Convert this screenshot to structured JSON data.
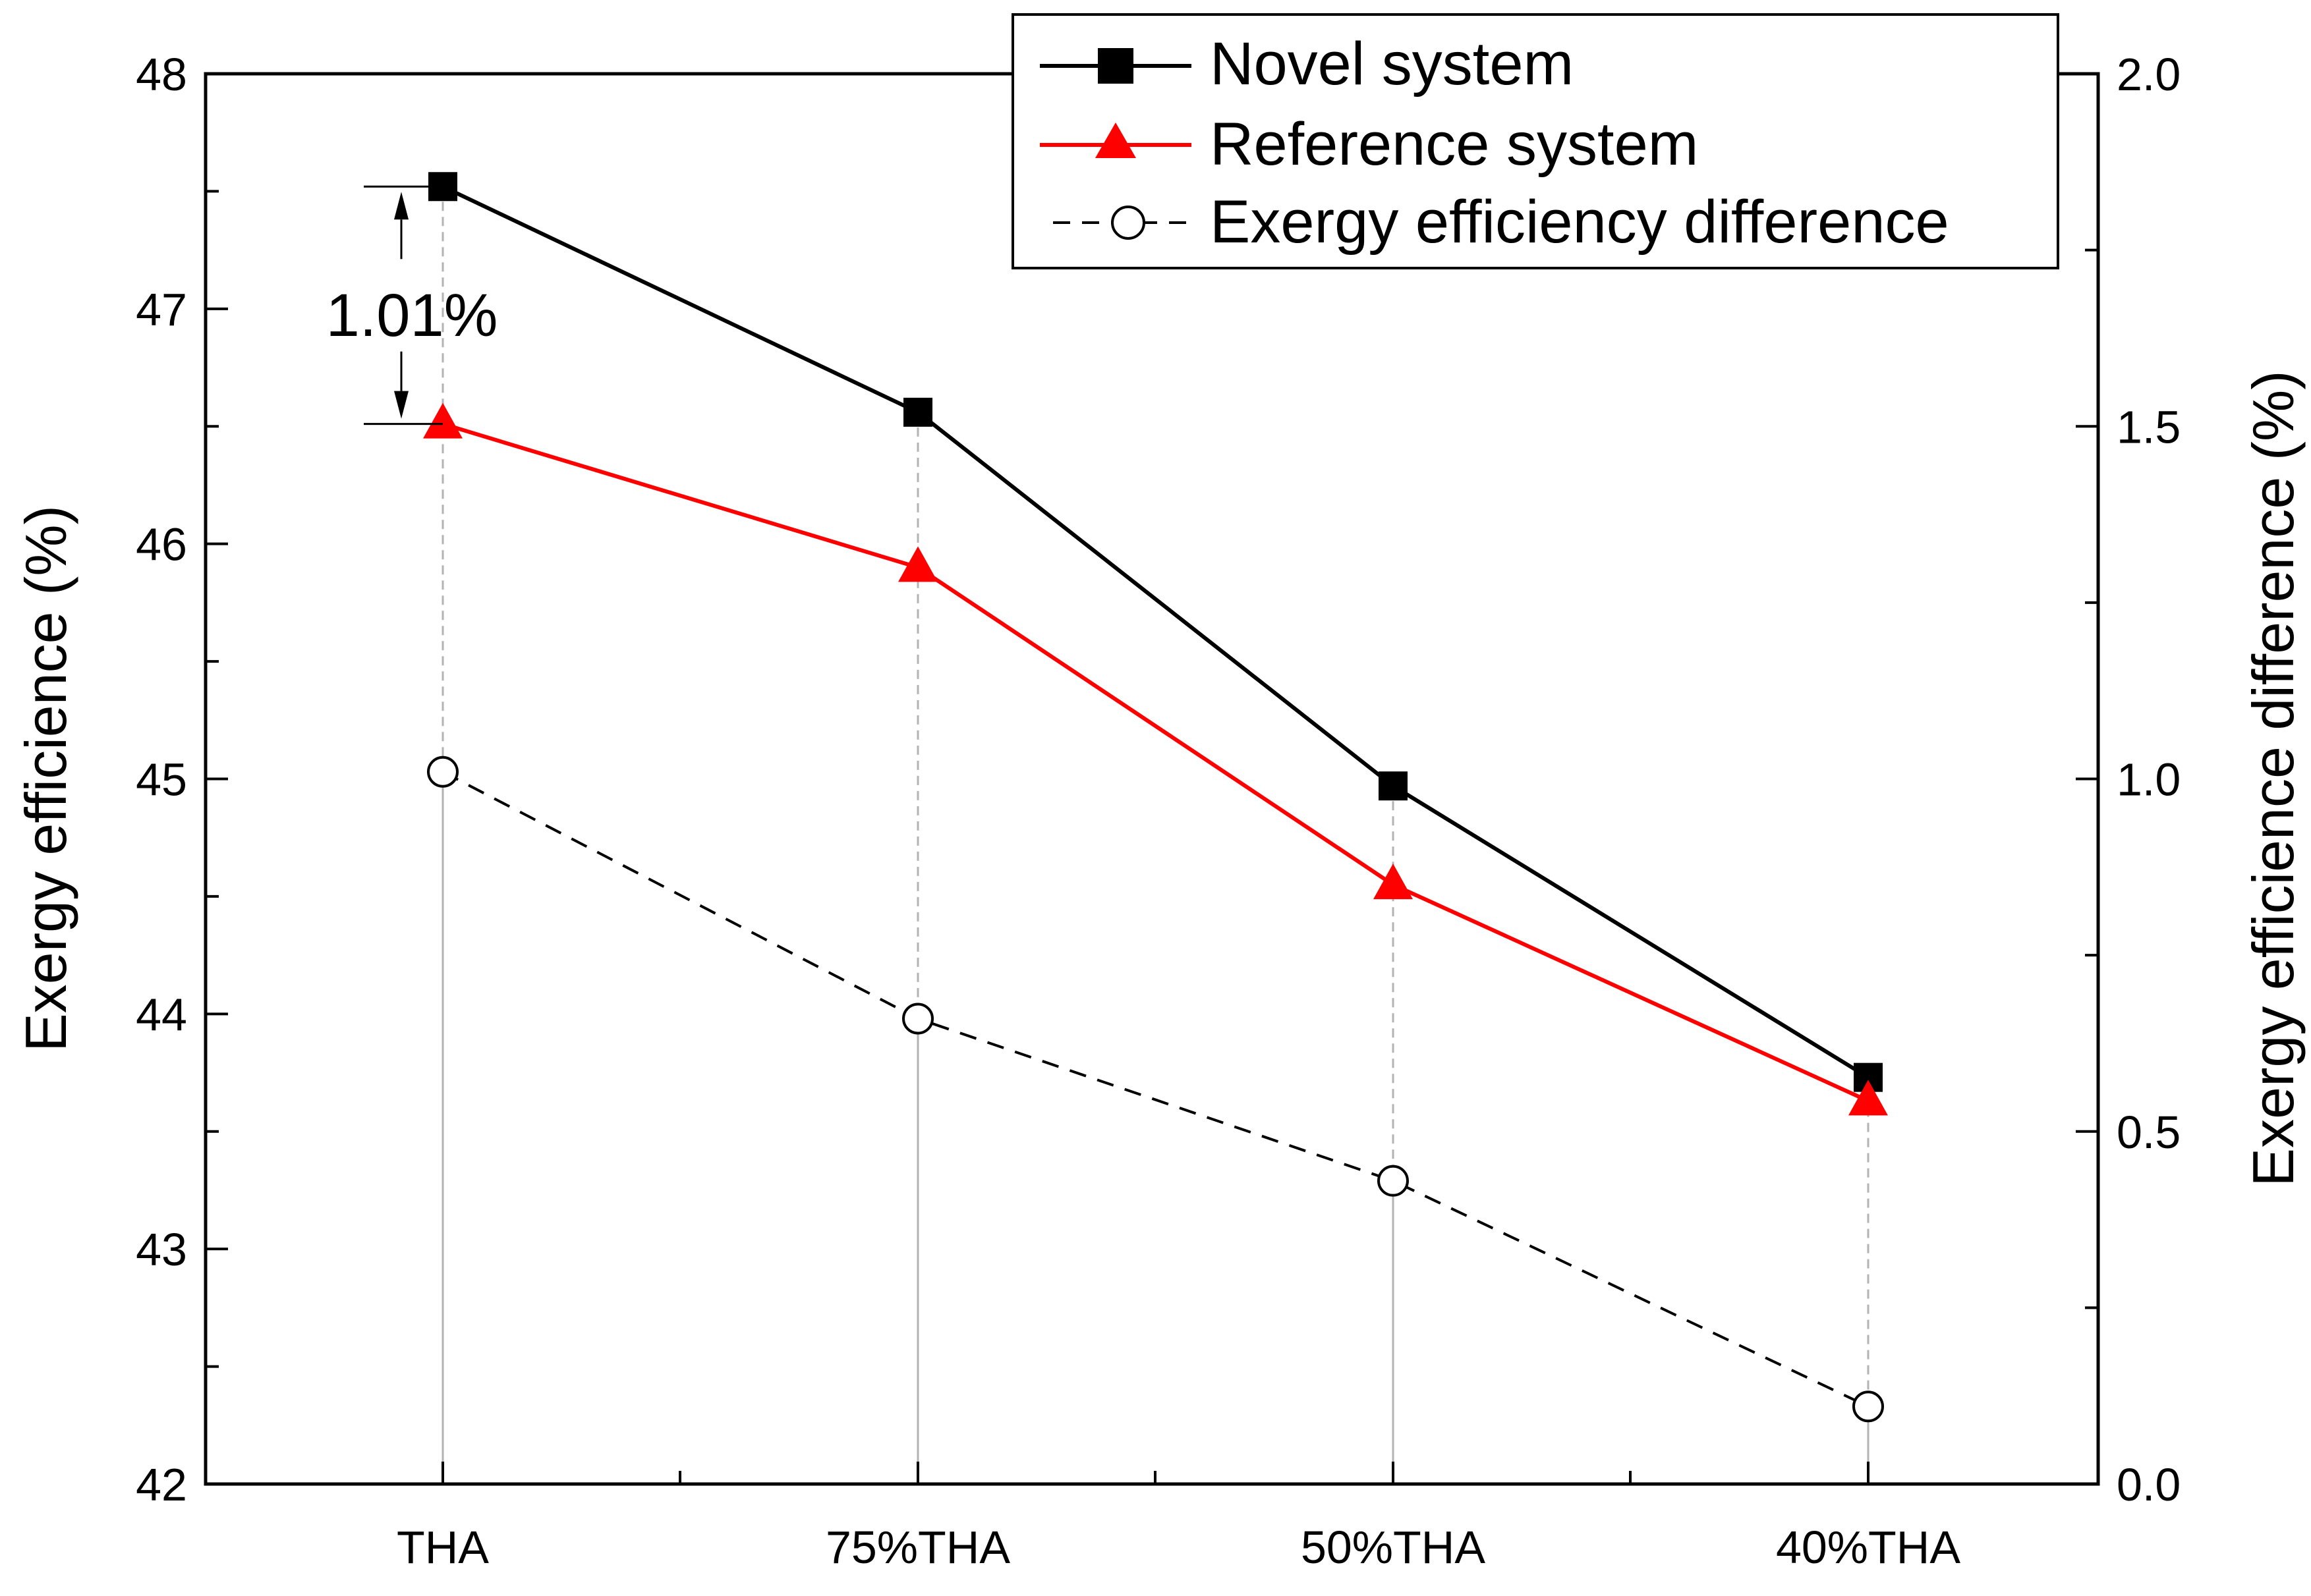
{
  "chart_data": {
    "type": "line",
    "categories": [
      "THA",
      "75%THA",
      "50%THA",
      "40%THA"
    ],
    "ylabel": "Exergy efficience (%)",
    "y2label": "Exergy efficience difference (%)",
    "ylim": [
      42,
      48
    ],
    "y2lim": [
      0.0,
      2.0
    ],
    "yticks": [
      "42",
      "43",
      "44",
      "45",
      "46",
      "47",
      "48"
    ],
    "y2ticks": [
      "0.0",
      "0.5",
      "1.0",
      "1.5",
      "2.0"
    ],
    "series": [
      {
        "name": "Novel system",
        "axis": "left",
        "values": [
          47.52,
          46.56,
          44.97,
          43.73
        ],
        "color": "#000000",
        "marker": "square",
        "line": "solid"
      },
      {
        "name": "Reference system",
        "axis": "left",
        "values": [
          46.51,
          45.9,
          44.55,
          43.63
        ],
        "color": "#ff0000",
        "marker": "triangle",
        "line": "solid"
      },
      {
        "name": "Exergy efficiency difference",
        "axis": "right",
        "values": [
          1.01,
          0.66,
          0.43,
          0.11
        ],
        "color": "#000000",
        "marker": "open-circle",
        "line": "dashed"
      }
    ],
    "annotation": {
      "text": "1.01%",
      "category": "THA",
      "from": 46.51,
      "to": 47.52
    },
    "legend_position": "top-right"
  }
}
